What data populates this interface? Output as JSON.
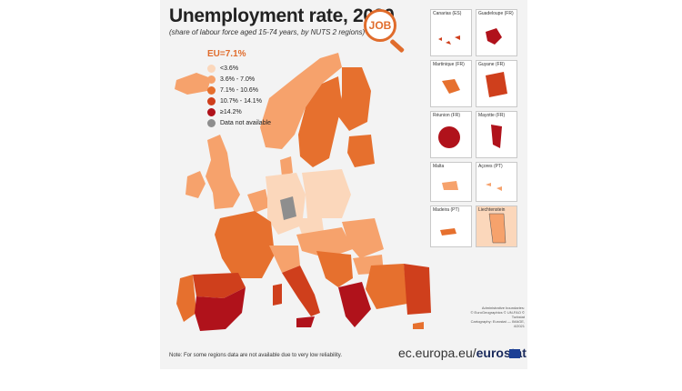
{
  "title": "Unemployment rate, 2020",
  "subtitle": "(share of labour force aged 15-74 years, by NUTS 2 regions)",
  "badge": "JOB",
  "legend": {
    "eu_average": "EU=7.1%",
    "items": [
      {
        "label": "<3.6%",
        "color": "#fbd7bb"
      },
      {
        "label": "3.6% - 7.0%",
        "color": "#f6a26c"
      },
      {
        "label": "7.1% - 10.6%",
        "color": "#e6702e"
      },
      {
        "label": "10.7% - 14.1%",
        "color": "#cf3f1c"
      },
      {
        "label": "≥14.2%",
        "color": "#b0121b"
      },
      {
        "label": "Data not available",
        "color": "#8e8e8e"
      }
    ]
  },
  "insets": [
    {
      "label": "Canarias (ES)"
    },
    {
      "label": "Guadeloupe (FR)"
    },
    {
      "label": "Martinique (FR)"
    },
    {
      "label": "Guyane (FR)"
    },
    {
      "label": "Réunion (FR)"
    },
    {
      "label": "Mayotte (FR)"
    },
    {
      "label": "Malta"
    },
    {
      "label": "Açores (PT)"
    },
    {
      "label": "Madeira (PT)"
    },
    {
      "label": "Liechtenstein"
    }
  ],
  "credits": [
    "Administrative boundaries:",
    "© EuroGeographics © UN-FAO © Turkstat",
    "Cartography: Eurostat — IMAGE, 4/2021"
  ],
  "footnote": "Note: For some regions data are not available due to very low reliability.",
  "website": {
    "prefix": "ec.europa.eu/",
    "brand": "eurostat"
  }
}
